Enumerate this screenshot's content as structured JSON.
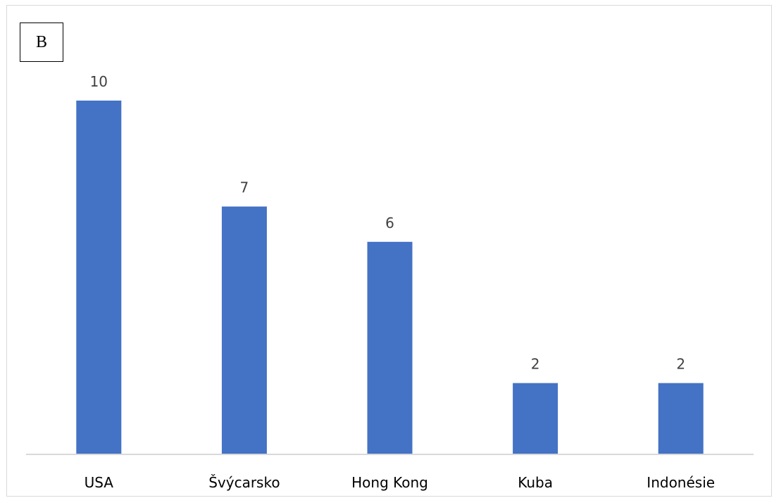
{
  "panel_label": "B",
  "chart_data": {
    "type": "bar",
    "title": "",
    "xlabel": "",
    "ylabel": "",
    "categories": [
      "USA",
      "Švýcarsko",
      "Hong Kong",
      "Kuba",
      "Indonésie"
    ],
    "values": [
      10,
      7,
      6,
      2,
      2
    ],
    "ylim": [
      0,
      10
    ],
    "grid": false,
    "legend": "none",
    "data_labels": true,
    "bar_color": "#4472c4",
    "axis_color": "#d9d9d9"
  }
}
